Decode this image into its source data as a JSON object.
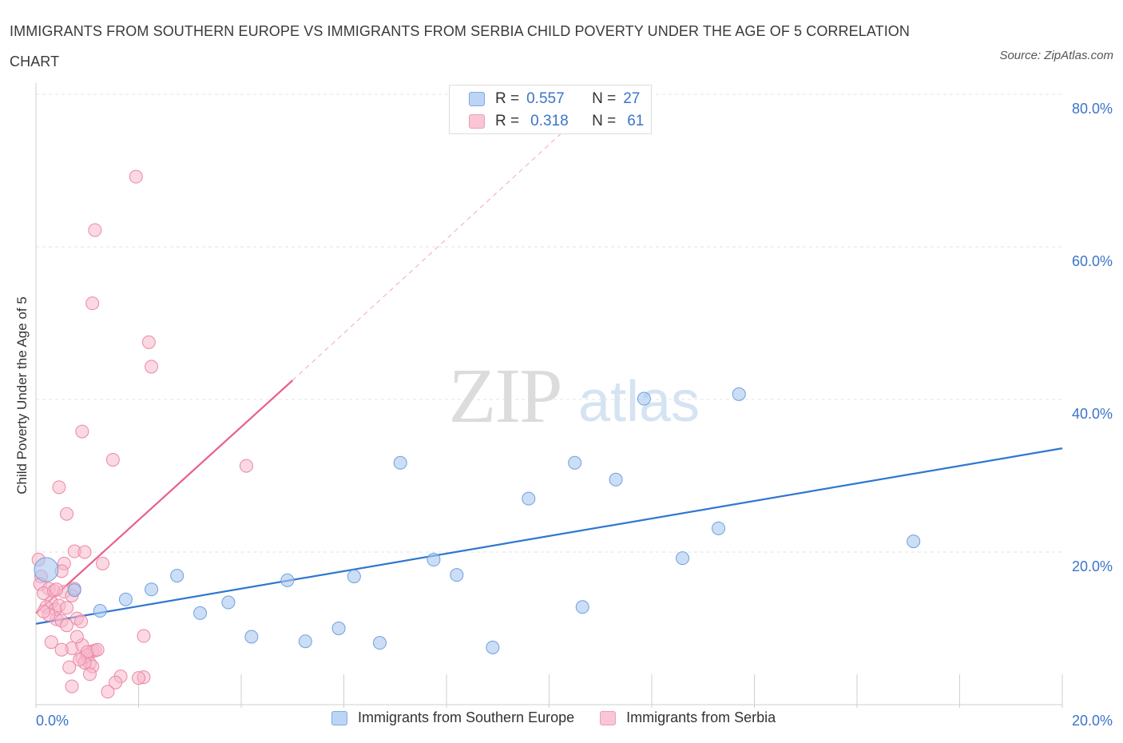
{
  "title": "IMMIGRANTS FROM SOUTHERN EUROPE VS IMMIGRANTS FROM SERBIA CHILD POVERTY UNDER THE AGE OF 5 CORRELATION CHART",
  "source": "Source: ZipAtlas.com",
  "watermark": {
    "zip": "ZIP",
    "atlas": "atlas"
  },
  "legend": {
    "r_label": "R =",
    "n_label": "N =",
    "series": [
      {
        "r": "0.557",
        "n": "27",
        "name": "Immigrants from Southern Europe"
      },
      {
        "r": "0.318",
        "n": "61",
        "name": "Immigrants from Serbia"
      }
    ]
  },
  "colors": {
    "blue_fill": "#a8c8f0",
    "blue_stroke": "#6f9fe0",
    "blue_line": "#2f77d0",
    "pink_fill": "#f7b8cb",
    "pink_stroke": "#ea88a6",
    "pink_line": "#e8608a",
    "axis_text": "#3b74c8"
  },
  "chart_data": {
    "type": "scatter",
    "title": "IMMIGRANTS FROM SOUTHERN EUROPE VS IMMIGRANTS FROM SERBIA CHILD POVERTY UNDER THE AGE OF 5 CORRELATION CHART",
    "xlabel": "",
    "ylabel": "Child Poverty Under the Age of 5",
    "xlim": [
      0,
      20
    ],
    "ylim": [
      0,
      80
    ],
    "x_tick_labels": [
      "0.0%",
      "20.0%"
    ],
    "y_ticks": [
      20,
      40,
      60,
      80
    ],
    "y_tick_labels": [
      "20.0%",
      "40.0%",
      "60.0%",
      "80.0%"
    ],
    "grid": true,
    "legend_position": "top-center",
    "series": [
      {
        "name": "Immigrants from Southern Europe",
        "color": "#6f9fe0",
        "points": [
          [
            0.2,
            17.7
          ],
          [
            0.75,
            15.0
          ],
          [
            1.25,
            12.3
          ],
          [
            1.75,
            13.8
          ],
          [
            2.25,
            15.1
          ],
          [
            2.75,
            16.9
          ],
          [
            3.2,
            12.0
          ],
          [
            3.75,
            13.4
          ],
          [
            4.2,
            8.9
          ],
          [
            4.9,
            16.3
          ],
          [
            5.25,
            8.3
          ],
          [
            5.9,
            10.0
          ],
          [
            6.2,
            16.8
          ],
          [
            6.7,
            8.1
          ],
          [
            7.1,
            31.7
          ],
          [
            7.75,
            19.0
          ],
          [
            8.2,
            17.0
          ],
          [
            8.9,
            7.5
          ],
          [
            9.6,
            27.0
          ],
          [
            10.5,
            31.7
          ],
          [
            10.65,
            12.8
          ],
          [
            11.3,
            29.5
          ],
          [
            11.85,
            40.1
          ],
          [
            12.6,
            19.2
          ],
          [
            13.3,
            23.1
          ],
          [
            13.7,
            40.7
          ],
          [
            17.1,
            21.4
          ]
        ],
        "trend": {
          "x": [
            0,
            20
          ],
          "y": [
            10.6,
            33.6
          ]
        }
      },
      {
        "name": "Immigrants from Serbia",
        "color": "#ea88a6",
        "points": [
          [
            1.95,
            69.2
          ],
          [
            1.15,
            62.2
          ],
          [
            1.1,
            52.6
          ],
          [
            2.2,
            47.5
          ],
          [
            2.25,
            44.3
          ],
          [
            0.9,
            35.8
          ],
          [
            1.5,
            32.1
          ],
          [
            4.1,
            31.3
          ],
          [
            0.45,
            28.5
          ],
          [
            0.6,
            25.0
          ],
          [
            0.75,
            20.1
          ],
          [
            0.95,
            20.0
          ],
          [
            1.3,
            18.5
          ],
          [
            0.55,
            18.5
          ],
          [
            0.5,
            17.5
          ],
          [
            0.05,
            19.0
          ],
          [
            0.1,
            16.8
          ],
          [
            0.08,
            15.8
          ],
          [
            0.25,
            15.2
          ],
          [
            0.15,
            14.6
          ],
          [
            0.35,
            14.9
          ],
          [
            0.55,
            14.8
          ],
          [
            0.7,
            14.3
          ],
          [
            0.75,
            15.2
          ],
          [
            0.3,
            13.4
          ],
          [
            0.2,
            12.8
          ],
          [
            0.38,
            12.5
          ],
          [
            0.4,
            11.2
          ],
          [
            0.25,
            11.8
          ],
          [
            0.5,
            11.0
          ],
          [
            0.6,
            10.4
          ],
          [
            0.8,
            11.3
          ],
          [
            0.88,
            10.9
          ],
          [
            0.3,
            8.2
          ],
          [
            0.7,
            7.4
          ],
          [
            0.9,
            7.8
          ],
          [
            1.1,
            7.0
          ],
          [
            1.15,
            7.1
          ],
          [
            0.5,
            7.2
          ],
          [
            0.8,
            8.9
          ],
          [
            0.9,
            6.1
          ],
          [
            1.0,
            6.5
          ],
          [
            1.05,
            5.4
          ],
          [
            1.1,
            5.0
          ],
          [
            0.95,
            5.5
          ],
          [
            0.65,
            4.9
          ],
          [
            1.05,
            4.0
          ],
          [
            1.65,
            3.7
          ],
          [
            2.1,
            3.6
          ],
          [
            2.0,
            3.5
          ],
          [
            1.55,
            2.9
          ],
          [
            0.7,
            2.4
          ],
          [
            1.4,
            1.7
          ],
          [
            2.1,
            9.0
          ],
          [
            0.4,
            15.1
          ],
          [
            0.15,
            12.2
          ],
          [
            0.45,
            13.0
          ],
          [
            0.6,
            12.7
          ],
          [
            1.0,
            6.9
          ],
          [
            0.85,
            5.9
          ],
          [
            1.2,
            7.2
          ]
        ],
        "trend": {
          "x": [
            0,
            5.0
          ],
          "y": [
            12.0,
            42.5
          ]
        },
        "trend_extension": {
          "x": [
            5.0,
            10.5
          ],
          "y": [
            42.5,
            76.5
          ]
        }
      }
    ]
  }
}
